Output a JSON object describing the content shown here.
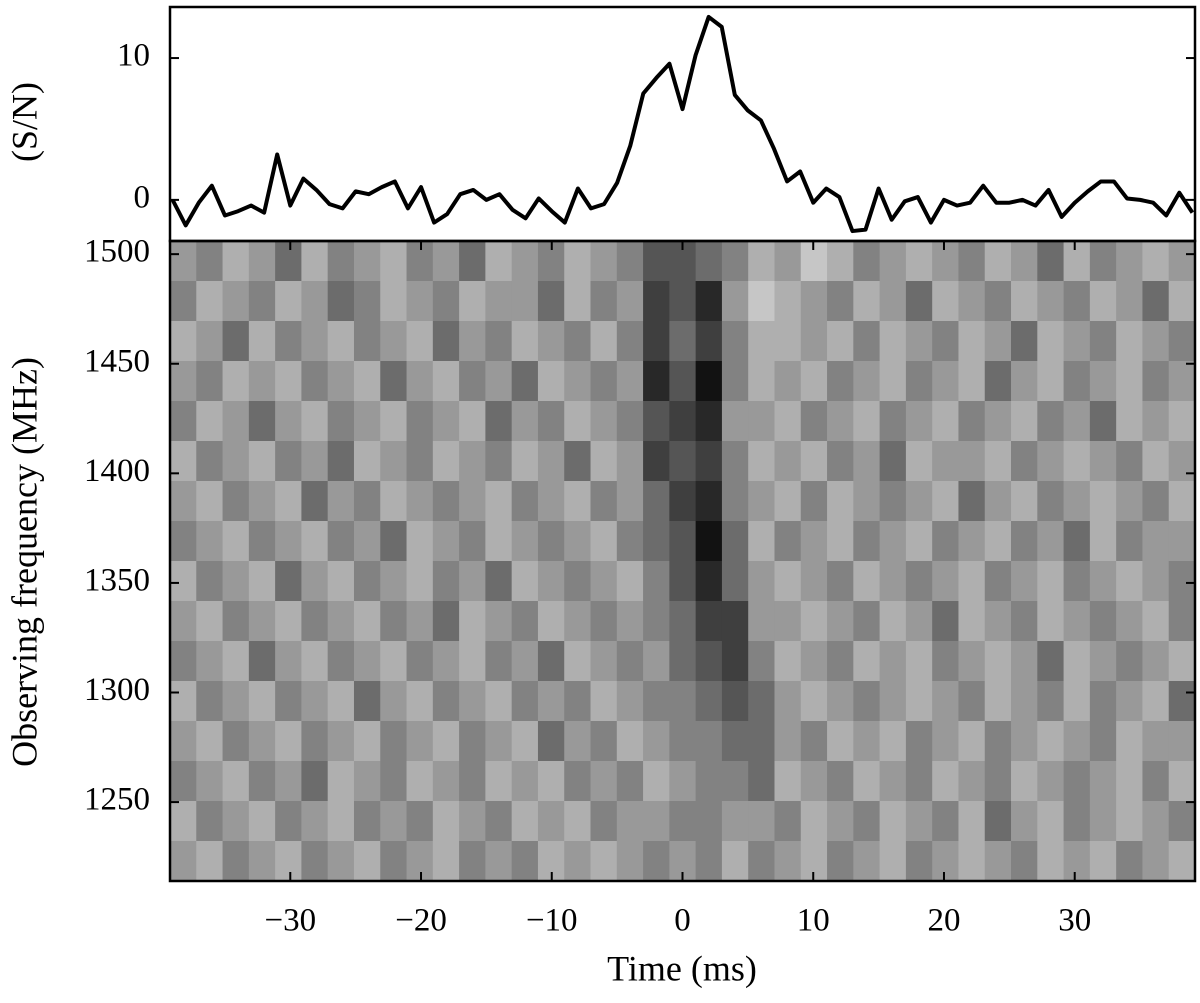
{
  "chart_data": [
    {
      "type": "line",
      "ylabel": "(S/N)",
      "color": "#000000",
      "x": [
        -39,
        -38,
        -37,
        -36,
        -35,
        -34,
        -33,
        -32,
        -31,
        -30,
        -29,
        -28,
        -27,
        -26,
        -25,
        -24,
        -23,
        -22,
        -21,
        -20,
        -19,
        -18,
        -17,
        -16,
        -15,
        -14,
        -13,
        -12,
        -11,
        -10,
        -9,
        -8,
        -7,
        -6,
        -5,
        -4,
        -3,
        -2,
        -1,
        0,
        1,
        2,
        3,
        4,
        5,
        6,
        7,
        8,
        9,
        10,
        11,
        12,
        13,
        14,
        15,
        16,
        17,
        18,
        19,
        20,
        21,
        22,
        23,
        24,
        25,
        26,
        27,
        28,
        29,
        30,
        31,
        32,
        33,
        34,
        35,
        36,
        37,
        38,
        39
      ],
      "values": [
        0,
        -1.8,
        -0.2,
        1.0,
        -1.1,
        -0.8,
        -0.4,
        -0.9,
        3.2,
        -0.4,
        1.5,
        0.7,
        -0.3,
        -0.6,
        0.6,
        0.4,
        0.9,
        1.3,
        -0.6,
        0.9,
        -1.6,
        -1.0,
        0.4,
        0.7,
        0.0,
        0.4,
        -0.7,
        -1.3,
        0.1,
        -0.8,
        -1.6,
        0.8,
        -0.6,
        -0.3,
        1.2,
        3.8,
        7.5,
        8.6,
        9.6,
        6.4,
        10.2,
        12.9,
        12.2,
        7.4,
        6.3,
        5.6,
        3.6,
        1.3,
        2.0,
        -0.2,
        0.8,
        0.2,
        -2.2,
        -2.1,
        0.8,
        -1.4,
        -0.1,
        0.2,
        -1.6,
        0.0,
        -0.4,
        -0.2,
        1.0,
        -0.2,
        -0.2,
        0.0,
        -0.4,
        0.7,
        -1.2,
        -0.2,
        0.6,
        1.3,
        1.3,
        0.1,
        0.0,
        -0.2,
        -1.1,
        0.5,
        -0.9
      ],
      "xlim": [
        -39.2,
        39.2
      ],
      "ylim": [
        -2.9,
        13.6
      ],
      "yticks": [
        0,
        10
      ]
    },
    {
      "type": "heatmap",
      "xlabel": "Time (ms)",
      "ylabel": "Observing frequency (MHz)",
      "colormap": "gray_r",
      "clim": [
        0,
        10
      ],
      "xlim": [
        -39.2,
        39.2
      ],
      "ylim": [
        1214,
        1506
      ],
      "xticks": [
        {
          "value": -30,
          "label": "−30"
        },
        {
          "value": -20,
          "label": "−20"
        },
        {
          "value": -10,
          "label": "−10"
        },
        0,
        10,
        20,
        30
      ],
      "yticks": [
        1250,
        1300,
        1350,
        1400,
        1450,
        1500
      ],
      "values": [
        [
          4,
          5,
          3,
          4,
          6,
          3,
          5,
          4,
          3,
          5,
          4,
          6,
          3,
          4,
          5,
          3,
          4,
          5,
          7,
          7,
          6,
          5,
          3,
          4,
          2,
          3,
          5,
          4,
          3,
          4,
          5,
          3,
          4,
          6,
          3,
          5,
          4,
          3,
          4
        ],
        [
          5,
          3,
          4,
          5,
          3,
          4,
          6,
          5,
          3,
          4,
          5,
          3,
          4,
          4,
          6,
          3,
          5,
          4,
          8,
          7,
          9,
          4,
          2,
          3,
          4,
          5,
          3,
          4,
          6,
          3,
          4,
          5,
          3,
          4,
          5,
          3,
          4,
          6,
          3
        ],
        [
          3,
          4,
          6,
          3,
          5,
          4,
          3,
          5,
          4,
          3,
          6,
          4,
          5,
          3,
          4,
          5,
          3,
          5,
          8,
          6,
          8,
          5,
          3,
          3,
          4,
          3,
          5,
          3,
          4,
          5,
          3,
          4,
          6,
          3,
          4,
          5,
          3,
          4,
          5
        ],
        [
          4,
          5,
          3,
          4,
          3,
          5,
          4,
          3,
          6,
          4,
          3,
          5,
          4,
          6,
          3,
          4,
          5,
          4,
          9,
          7,
          10,
          5,
          3,
          4,
          3,
          5,
          4,
          3,
          5,
          4,
          3,
          6,
          4,
          3,
          5,
          4,
          3,
          5,
          4
        ],
        [
          5,
          3,
          4,
          6,
          4,
          3,
          5,
          4,
          3,
          5,
          4,
          3,
          6,
          4,
          5,
          3,
          4,
          5,
          7,
          8,
          9,
          4,
          4,
          3,
          5,
          4,
          3,
          5,
          4,
          3,
          5,
          4,
          3,
          5,
          4,
          6,
          3,
          4,
          3
        ],
        [
          3,
          5,
          4,
          3,
          5,
          4,
          6,
          3,
          4,
          5,
          3,
          4,
          5,
          3,
          4,
          6,
          3,
          4,
          8,
          7,
          8,
          5,
          3,
          4,
          3,
          5,
          4,
          6,
          3,
          4,
          4,
          3,
          5,
          4,
          3,
          4,
          5,
          3,
          4
        ],
        [
          4,
          3,
          5,
          4,
          3,
          6,
          4,
          5,
          3,
          4,
          5,
          4,
          3,
          5,
          4,
          3,
          5,
          4,
          6,
          8,
          9,
          5,
          4,
          3,
          5,
          3,
          4,
          5,
          4,
          3,
          6,
          4,
          3,
          5,
          4,
          3,
          4,
          5,
          3
        ],
        [
          5,
          4,
          3,
          5,
          4,
          3,
          5,
          4,
          6,
          3,
          4,
          5,
          3,
          4,
          5,
          4,
          3,
          5,
          6,
          7,
          10,
          6,
          3,
          5,
          4,
          3,
          5,
          4,
          3,
          5,
          4,
          3,
          5,
          4,
          6,
          3,
          5,
          4,
          4
        ],
        [
          3,
          5,
          4,
          3,
          6,
          4,
          3,
          5,
          4,
          3,
          5,
          4,
          6,
          3,
          4,
          5,
          4,
          3,
          5,
          7,
          9,
          6,
          4,
          3,
          4,
          5,
          3,
          4,
          5,
          4,
          3,
          5,
          4,
          3,
          5,
          4,
          3,
          4,
          5
        ],
        [
          4,
          3,
          5,
          4,
          3,
          5,
          4,
          3,
          5,
          4,
          6,
          3,
          4,
          5,
          3,
          4,
          5,
          4,
          5,
          6,
          8,
          8,
          4,
          4,
          3,
          4,
          5,
          3,
          4,
          6,
          3,
          4,
          5,
          3,
          4,
          5,
          4,
          3,
          5
        ],
        [
          5,
          4,
          3,
          6,
          4,
          3,
          5,
          4,
          3,
          5,
          4,
          3,
          5,
          4,
          6,
          3,
          4,
          5,
          4,
          6,
          7,
          8,
          5,
          3,
          4,
          5,
          3,
          4,
          3,
          5,
          4,
          3,
          4,
          6,
          3,
          4,
          5,
          4,
          3
        ],
        [
          3,
          5,
          4,
          3,
          5,
          4,
          3,
          6,
          4,
          3,
          5,
          4,
          3,
          5,
          4,
          5,
          3,
          4,
          5,
          5,
          6,
          7,
          6,
          4,
          3,
          4,
          5,
          4,
          3,
          4,
          5,
          3,
          4,
          5,
          3,
          5,
          4,
          3,
          6
        ],
        [
          4,
          3,
          5,
          4,
          3,
          5,
          4,
          3,
          5,
          4,
          3,
          5,
          4,
          3,
          6,
          4,
          5,
          3,
          4,
          5,
          5,
          6,
          6,
          4,
          5,
          3,
          4,
          3,
          5,
          4,
          3,
          5,
          4,
          3,
          4,
          5,
          3,
          4,
          4
        ],
        [
          5,
          4,
          3,
          5,
          4,
          6,
          3,
          4,
          5,
          3,
          4,
          5,
          3,
          4,
          3,
          5,
          4,
          5,
          3,
          4,
          5,
          5,
          6,
          3,
          4,
          5,
          3,
          4,
          5,
          3,
          4,
          5,
          3,
          4,
          5,
          4,
          3,
          5,
          3
        ],
        [
          3,
          5,
          4,
          3,
          5,
          4,
          3,
          5,
          4,
          5,
          3,
          4,
          5,
          3,
          4,
          3,
          5,
          4,
          4,
          5,
          5,
          4,
          4,
          5,
          3,
          4,
          5,
          3,
          4,
          5,
          3,
          6,
          4,
          3,
          5,
          4,
          3,
          4,
          5
        ],
        [
          4,
          3,
          5,
          4,
          3,
          5,
          4,
          3,
          5,
          4,
          3,
          5,
          4,
          5,
          3,
          4,
          3,
          4,
          5,
          4,
          5,
          3,
          5,
          4,
          3,
          5,
          4,
          3,
          5,
          4,
          3,
          4,
          5,
          3,
          4,
          3,
          5,
          4,
          3
        ]
      ]
    }
  ]
}
